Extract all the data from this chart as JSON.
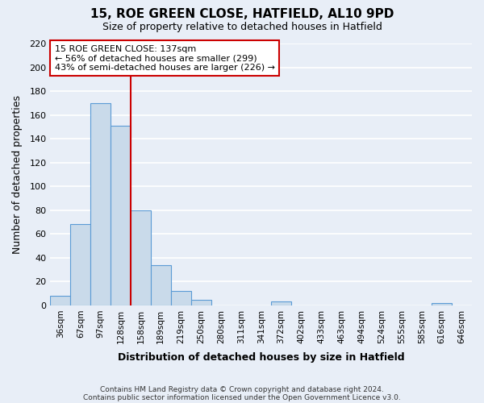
{
  "title": "15, ROE GREEN CLOSE, HATFIELD, AL10 9PD",
  "subtitle": "Size of property relative to detached houses in Hatfield",
  "xlabel": "Distribution of detached houses by size in Hatfield",
  "ylabel": "Number of detached properties",
  "footnote1": "Contains HM Land Registry data © Crown copyright and database right 2024.",
  "footnote2": "Contains public sector information licensed under the Open Government Licence v3.0.",
  "bin_labels": [
    "36sqm",
    "67sqm",
    "97sqm",
    "128sqm",
    "158sqm",
    "189sqm",
    "219sqm",
    "250sqm",
    "280sqm",
    "311sqm",
    "341sqm",
    "372sqm",
    "402sqm",
    "433sqm",
    "463sqm",
    "494sqm",
    "524sqm",
    "555sqm",
    "585sqm",
    "616sqm",
    "646sqm"
  ],
  "bar_heights": [
    8,
    68,
    170,
    151,
    80,
    34,
    12,
    5,
    0,
    0,
    0,
    3,
    0,
    0,
    0,
    0,
    0,
    0,
    0,
    2,
    0
  ],
  "bar_color": "#c9daea",
  "bar_edge_color": "#5b9bd5",
  "annotation_title": "15 ROE GREEN CLOSE: 137sqm",
  "annotation_line1": "← 56% of detached houses are smaller (299)",
  "annotation_line2": "43% of semi-detached houses are larger (226) →",
  "ylim": [
    0,
    220
  ],
  "yticks": [
    0,
    20,
    40,
    60,
    80,
    100,
    120,
    140,
    160,
    180,
    200,
    220
  ],
  "fig_background": "#e8eef7",
  "axes_background": "#e8eef7",
  "grid_color": "#ffffff",
  "annotation_box_bg": "#ffffff",
  "annotation_box_edge": "#cc0000",
  "red_line_color": "#cc0000",
  "red_line_x": 3.5
}
